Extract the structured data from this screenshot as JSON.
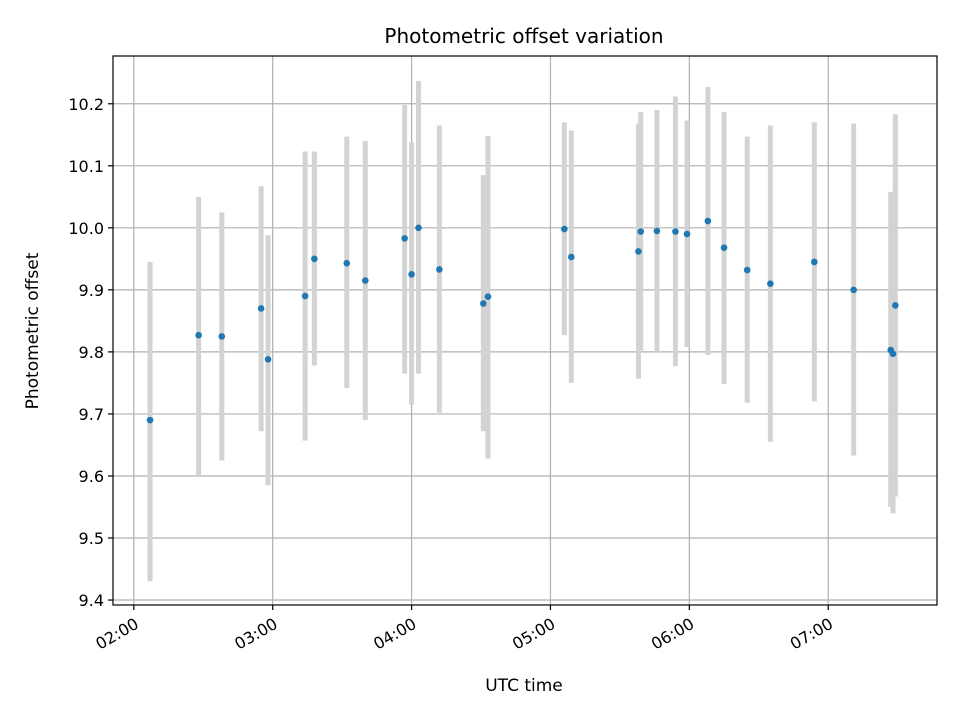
{
  "chart_data": {
    "type": "scatter",
    "title": "Photometric offset variation",
    "xlabel": "UTC time",
    "ylabel": "Photometric offset",
    "x_ticks": [
      "02:00",
      "03:00",
      "04:00",
      "05:00",
      "06:00",
      "07:00"
    ],
    "x_tick_hours": [
      2,
      3,
      4,
      5,
      6,
      7
    ],
    "y_ticks": [
      "9.4",
      "9.5",
      "9.6",
      "9.7",
      "9.8",
      "9.9",
      "10.0",
      "10.1",
      "10.2"
    ],
    "y_tick_values": [
      9.4,
      9.5,
      9.6,
      9.7,
      9.8,
      9.9,
      10.0,
      10.1,
      10.2
    ],
    "xlim": [
      "01:51",
      "07:47"
    ],
    "ylim": [
      9.392,
      10.277
    ],
    "grid": true,
    "marker_color": "#1f77b4",
    "errorbar_color": "#d3d3d3",
    "series": [
      {
        "points": [
          {
            "x": "02:07",
            "y": 9.69,
            "ylow": 9.43,
            "yhigh": 9.945
          },
          {
            "x": "02:28",
            "y": 9.827,
            "ylow": 9.6,
            "yhigh": 10.05
          },
          {
            "x": "02:38",
            "y": 9.825,
            "ylow": 9.625,
            "yhigh": 10.025
          },
          {
            "x": "02:55",
            "y": 9.87,
            "ylow": 9.672,
            "yhigh": 10.067
          },
          {
            "x": "02:58",
            "y": 9.788,
            "ylow": 9.585,
            "yhigh": 9.988
          },
          {
            "x": "03:14",
            "y": 9.89,
            "ylow": 9.657,
            "yhigh": 10.123
          },
          {
            "x": "03:18",
            "y": 9.95,
            "ylow": 9.778,
            "yhigh": 10.123
          },
          {
            "x": "03:32",
            "y": 9.943,
            "ylow": 9.742,
            "yhigh": 10.147
          },
          {
            "x": "03:40",
            "y": 9.915,
            "ylow": 9.69,
            "yhigh": 10.14
          },
          {
            "x": "03:57",
            "y": 9.983,
            "ylow": 9.765,
            "yhigh": 10.198
          },
          {
            "x": "04:00",
            "y": 9.925,
            "ylow": 9.715,
            "yhigh": 10.138
          },
          {
            "x": "04:03",
            "y": 10.0,
            "ylow": 9.765,
            "yhigh": 10.237
          },
          {
            "x": "04:12",
            "y": 9.933,
            "ylow": 9.702,
            "yhigh": 10.165
          },
          {
            "x": "04:31",
            "y": 9.878,
            "ylow": 9.672,
            "yhigh": 10.085
          },
          {
            "x": "04:33",
            "y": 9.889,
            "ylow": 9.628,
            "yhigh": 10.148
          },
          {
            "x": "05:06",
            "y": 9.998,
            "ylow": 9.827,
            "yhigh": 10.17
          },
          {
            "x": "05:09",
            "y": 9.953,
            "ylow": 9.75,
            "yhigh": 10.157
          },
          {
            "x": "05:38",
            "y": 9.962,
            "ylow": 9.757,
            "yhigh": 10.168
          },
          {
            "x": "05:39",
            "y": 9.994,
            "ylow": 9.802,
            "yhigh": 10.187
          },
          {
            "x": "05:46",
            "y": 9.995,
            "ylow": 9.8,
            "yhigh": 10.19
          },
          {
            "x": "05:54",
            "y": 9.994,
            "ylow": 9.777,
            "yhigh": 10.212
          },
          {
            "x": "05:59",
            "y": 9.99,
            "ylow": 9.808,
            "yhigh": 10.173
          },
          {
            "x": "06:08",
            "y": 10.011,
            "ylow": 9.795,
            "yhigh": 10.227
          },
          {
            "x": "06:15",
            "y": 9.968,
            "ylow": 9.748,
            "yhigh": 10.187
          },
          {
            "x": "06:25",
            "y": 9.932,
            "ylow": 9.718,
            "yhigh": 10.147
          },
          {
            "x": "06:35",
            "y": 9.91,
            "ylow": 9.655,
            "yhigh": 10.165
          },
          {
            "x": "06:54",
            "y": 9.945,
            "ylow": 9.72,
            "yhigh": 10.17
          },
          {
            "x": "07:11",
            "y": 9.9,
            "ylow": 9.633,
            "yhigh": 10.168
          },
          {
            "x": "07:27",
            "y": 9.803,
            "ylow": 9.55,
            "yhigh": 10.058
          },
          {
            "x": "07:28",
            "y": 9.797,
            "ylow": 9.54,
            "yhigh": 10.055
          },
          {
            "x": "07:29",
            "y": 9.875,
            "ylow": 9.567,
            "yhigh": 10.183
          }
        ]
      }
    ]
  }
}
